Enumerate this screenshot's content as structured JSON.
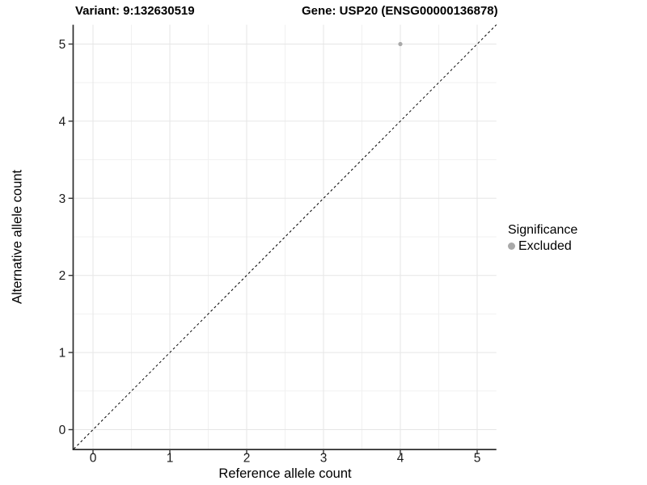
{
  "chart_data": {
    "type": "scatter",
    "titles": {
      "variant": "Variant: 9:132630519",
      "gene": "Gene: USP20 (ENSG00000136878)"
    },
    "xlabel": "Reference allele count",
    "ylabel": "Alternative allele count",
    "xlim": [
      -0.25,
      5.25
    ],
    "ylim": [
      -0.25,
      5.25
    ],
    "xticks": [
      0,
      1,
      2,
      3,
      4,
      5
    ],
    "yticks": [
      0,
      1,
      2,
      3,
      4,
      5
    ],
    "minor_grid_offset": 0.5,
    "grid": true,
    "points": [
      {
        "x": 4,
        "y": 5,
        "series": "Excluded"
      }
    ],
    "identity_line": {
      "type": "dashed",
      "x1": -0.25,
      "y1": -0.25,
      "x2": 5.25,
      "y2": 5.25
    },
    "legend": {
      "position": "right",
      "title": "Significance",
      "items": [
        {
          "label": "Excluded",
          "color": "#a9a9a9"
        }
      ]
    },
    "colors": {
      "point": "#a9a9a9",
      "grid_major": "#e6e6e6",
      "grid_minor": "#f1f1f1",
      "axis_line": "#2e2e2e",
      "tick_mark": "#333333",
      "tick_label": "#1a1a1a",
      "identity_line": "#000000",
      "background": "#ffffff"
    }
  }
}
